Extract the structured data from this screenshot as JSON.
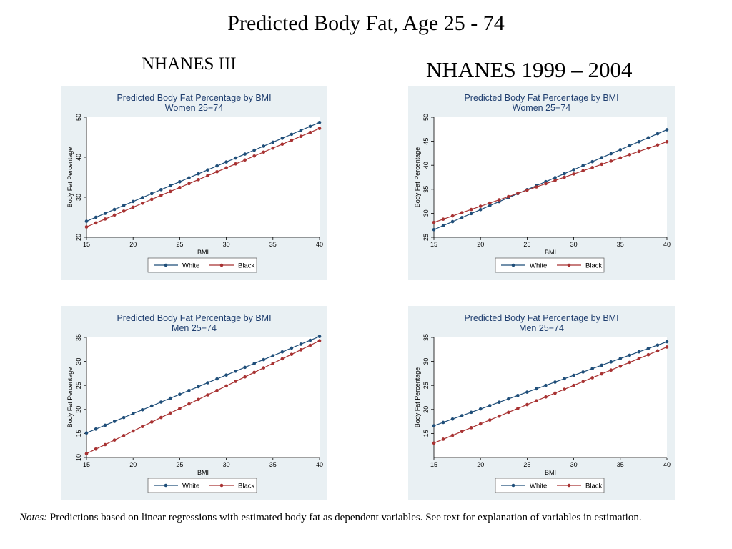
{
  "title": "Predicted Body Fat, Age 25 - 74",
  "col_left": "NHANES III",
  "col_right": "NHANES 1999 – 2004",
  "notes_label": "Notes:",
  "notes_text": " Predictions based on linear regressions with estimated body fat as dependent variables. See text for explanation of variables in estimation.",
  "colors": {
    "white_series": "#1f4e79",
    "black_series": "#a83232",
    "panel_bg": "#e9f0f3",
    "title_color": "#1f3e6f"
  },
  "chart_data": [
    {
      "type": "line",
      "title": "Predicted Body Fat Percentage by BMI",
      "subtitle": "Women 25−74",
      "xlabel": "BMI",
      "ylabel": "Body Fat Percentage",
      "xlim": [
        15,
        40
      ],
      "ylim": [
        20,
        50
      ],
      "xticks": [
        15,
        20,
        25,
        30,
        35,
        40
      ],
      "yticks": [
        20,
        30,
        40,
        50
      ],
      "legend": "bottom",
      "series": [
        {
          "name": "White",
          "x_start": 15,
          "x_end": 40,
          "x_step": 1,
          "y_start": 24.0,
          "y_end": 48.7
        },
        {
          "name": "Black",
          "x_start": 15,
          "x_end": 40,
          "x_step": 1,
          "y_start": 22.6,
          "y_end": 47.2
        }
      ]
    },
    {
      "type": "line",
      "title": "Predicted Body Fat Percentage by BMI",
      "subtitle": "Women 25−74",
      "xlabel": "BMI",
      "ylabel": "Body Fat Percentage",
      "xlim": [
        15,
        40
      ],
      "ylim": [
        25,
        50
      ],
      "xticks": [
        15,
        20,
        25,
        30,
        35,
        40
      ],
      "yticks": [
        25,
        30,
        35,
        40,
        45,
        50
      ],
      "legend": "bottom",
      "series": [
        {
          "name": "White",
          "x_start": 15,
          "x_end": 40,
          "x_step": 1,
          "y_start": 26.6,
          "y_end": 47.4
        },
        {
          "name": "Black",
          "x_start": 15,
          "x_end": 40,
          "x_step": 1,
          "y_start": 28.1,
          "y_end": 44.9
        }
      ]
    },
    {
      "type": "line",
      "title": "Predicted Body Fat Percentage by BMI",
      "subtitle": "Men 25−74",
      "xlabel": "BMI",
      "ylabel": "Body Fat Percentage",
      "xlim": [
        15,
        40
      ],
      "ylim": [
        10,
        35
      ],
      "xticks": [
        15,
        20,
        25,
        30,
        35,
        40
      ],
      "yticks": [
        10,
        15,
        20,
        25,
        30,
        35
      ],
      "legend": "bottom",
      "series": [
        {
          "name": "White",
          "x_start": 15,
          "x_end": 40,
          "x_step": 1,
          "y_start": 15.1,
          "y_end": 35.2
        },
        {
          "name": "Black",
          "x_start": 15,
          "x_end": 40,
          "x_step": 1,
          "y_start": 10.8,
          "y_end": 34.3
        }
      ]
    },
    {
      "type": "line",
      "title": "Predicted Body Fat Percentage by BMI",
      "subtitle": "Men 25−74",
      "xlabel": "BMI",
      "ylabel": "Body Fat Percentage",
      "xlim": [
        15,
        40
      ],
      "ylim": [
        10,
        35
      ],
      "xticks": [
        15,
        20,
        25,
        30,
        35,
        40
      ],
      "yticks": [
        15,
        20,
        25,
        30,
        35
      ],
      "legend": "bottom",
      "series": [
        {
          "name": "White",
          "x_start": 15,
          "x_end": 40,
          "x_step": 1,
          "y_start": 16.6,
          "y_end": 34.1
        },
        {
          "name": "Black",
          "x_start": 15,
          "x_end": 40,
          "x_step": 1,
          "y_start": 13.0,
          "y_end": 33.0
        }
      ]
    }
  ]
}
